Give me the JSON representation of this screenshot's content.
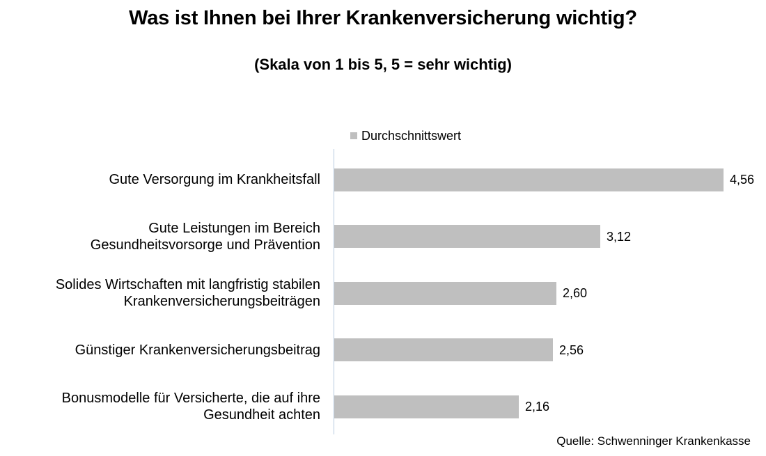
{
  "chart_data": {
    "type": "bar",
    "orientation": "horizontal",
    "title": "Was ist Ihnen bei Ihrer Krankenversicherung wichtig?",
    "subtitle": "(Skala von 1 bis 5, 5 = sehr wichtig)",
    "categories": [
      "Gute Versorgung im Krankheitsfall",
      "Gute Leistungen  im Bereich\nGesundheitsvorsorge und Prävention",
      "Solides Wirtschaften mit langfristig stabilen\nKrankenversicherungsbeiträgen",
      "Günstiger Krankenversicherungsbeitrag",
      "Bonusmodelle für Versicherte, die auf ihre\nGesundheit achten"
    ],
    "series": [
      {
        "name": "Durchschnittswert",
        "values": [
          4.56,
          3.12,
          2.6,
          2.56,
          2.16
        ],
        "data_labels": [
          "4,56",
          "3,12",
          "2,60",
          "2,56",
          "2,16"
        ],
        "color": "#bfbfbf"
      }
    ],
    "xlim": [
      0,
      4.56
    ],
    "grid": false,
    "legend_position": "top"
  },
  "source": "Quelle: Schwenninger Krankenkasse"
}
